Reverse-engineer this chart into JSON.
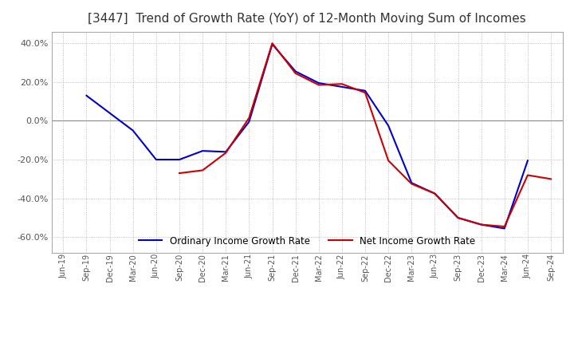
{
  "title": "[3447]  Trend of Growth Rate (YoY) of 12-Month Moving Sum of Incomes",
  "title_fontsize": 11,
  "background_color": "#ffffff",
  "grid_color": "#aaaaaa",
  "ordinary_color": "#0000cc",
  "net_color": "#cc0000",
  "legend_ordinary": "Ordinary Income Growth Rate",
  "legend_net": "Net Income Growth Rate",
  "ylim": [
    -0.68,
    0.46
  ],
  "yticks": [
    -0.6,
    -0.4,
    -0.2,
    0.0,
    0.2,
    0.4
  ],
  "dates": [
    "Jun-19",
    "Sep-19",
    "Dec-19",
    "Mar-20",
    "Jun-20",
    "Sep-20",
    "Dec-20",
    "Mar-21",
    "Jun-21",
    "Sep-21",
    "Dec-21",
    "Mar-22",
    "Jun-22",
    "Sep-22",
    "Dec-22",
    "Mar-23",
    "Jun-23",
    "Sep-23",
    "Dec-23",
    "Mar-24",
    "Jun-24",
    "Sep-24"
  ],
  "ordinary_values": [
    null,
    0.13,
    0.04,
    -0.05,
    -0.2,
    -0.2,
    -0.155,
    -0.16,
    -0.005,
    0.395,
    0.255,
    0.195,
    0.175,
    0.155,
    -0.025,
    -0.32,
    -0.375,
    -0.5,
    -0.535,
    -0.555,
    -0.205,
    null
  ],
  "net_values": [
    null,
    null,
    null,
    null,
    null,
    -0.27,
    -0.255,
    -0.165,
    0.015,
    0.4,
    0.245,
    0.185,
    0.19,
    0.145,
    -0.205,
    -0.325,
    -0.375,
    -0.5,
    -0.535,
    -0.545,
    -0.28,
    -0.3
  ]
}
